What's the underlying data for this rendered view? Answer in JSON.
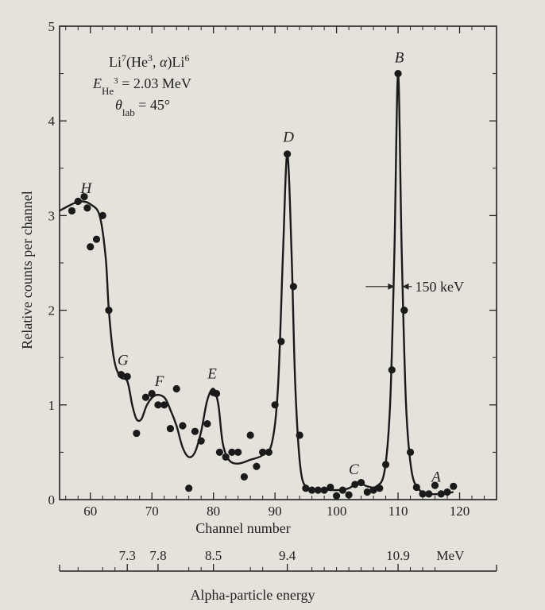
{
  "chart_data": {
    "type": "scatter",
    "reaction": "Li7(He3, α)Li6",
    "beam_energy_line": "E_He3 = 2.03 MeV",
    "angle_line": "θ_lab = 45°",
    "xlabel": "Channel number",
    "ylabel": "Relative counts per channel",
    "secondary_xlabel": "Alpha-particle energy",
    "xlim": [
      55,
      126
    ],
    "ylim": [
      0,
      5
    ],
    "x_ticks": [
      60,
      70,
      80,
      90,
      100,
      110,
      120
    ],
    "y_ticks": [
      0,
      1,
      2,
      3,
      4,
      5
    ],
    "energy_ticks": [
      {
        "channel": 66,
        "label": "7.3"
      },
      {
        "channel": 71,
        "label": "7.8"
      },
      {
        "channel": 80,
        "label": "8.5"
      },
      {
        "channel": 92,
        "label": "9.4"
      },
      {
        "channel": 110,
        "label": "10.9"
      },
      {
        "channel": 118.5,
        "label": "MeV"
      }
    ],
    "energy_minor_ticks": [
      58,
      62,
      64,
      76,
      78,
      86,
      88,
      96,
      98,
      100,
      102,
      104,
      106,
      108,
      112,
      114,
      116
    ],
    "points": [
      [
        57,
        3.05
      ],
      [
        58,
        3.15
      ],
      [
        59,
        3.2
      ],
      [
        59.5,
        3.08
      ],
      [
        60,
        2.67
      ],
      [
        61,
        2.75
      ],
      [
        62,
        3.0
      ],
      [
        63,
        2.0
      ],
      [
        65,
        1.32
      ],
      [
        66,
        1.3
      ],
      [
        67.5,
        0.7
      ],
      [
        69,
        1.08
      ],
      [
        70,
        1.12
      ],
      [
        71,
        1.0
      ],
      [
        72,
        1.0
      ],
      [
        73,
        0.75
      ],
      [
        74,
        1.17
      ],
      [
        75,
        0.78
      ],
      [
        76,
        0.12
      ],
      [
        77,
        0.72
      ],
      [
        78,
        0.62
      ],
      [
        79,
        0.8
      ],
      [
        80,
        1.13
      ],
      [
        80.5,
        1.12
      ],
      [
        81,
        0.5
      ],
      [
        82,
        0.45
      ],
      [
        83,
        0.5
      ],
      [
        84,
        0.5
      ],
      [
        85,
        0.24
      ],
      [
        86,
        0.68
      ],
      [
        87,
        0.35
      ],
      [
        88,
        0.5
      ],
      [
        89,
        0.5
      ],
      [
        90,
        1.0
      ],
      [
        91,
        1.67
      ],
      [
        92,
        3.65
      ],
      [
        93,
        2.25
      ],
      [
        94,
        0.68
      ],
      [
        95,
        0.12
      ],
      [
        96,
        0.1
      ],
      [
        97,
        0.1
      ],
      [
        98,
        0.1
      ],
      [
        99,
        0.13
      ],
      [
        100,
        0.04
      ],
      [
        101,
        0.1
      ],
      [
        102,
        0.05
      ],
      [
        103,
        0.16
      ],
      [
        104,
        0.18
      ],
      [
        105,
        0.08
      ],
      [
        106,
        0.1
      ],
      [
        107,
        0.12
      ],
      [
        108,
        0.37
      ],
      [
        109,
        1.37
      ],
      [
        110,
        4.5
      ],
      [
        111,
        2.0
      ],
      [
        112,
        0.5
      ],
      [
        113,
        0.13
      ],
      [
        114,
        0.06
      ],
      [
        115,
        0.06
      ],
      [
        116,
        0.15
      ],
      [
        117,
        0.06
      ],
      [
        118,
        0.08
      ],
      [
        119,
        0.14
      ]
    ],
    "curve": [
      [
        55,
        3.05
      ],
      [
        57,
        3.12
      ],
      [
        58.5,
        3.15
      ],
      [
        60,
        3.12
      ],
      [
        61.5,
        3.0
      ],
      [
        62.5,
        2.55
      ],
      [
        63,
        2.0
      ],
      [
        63.8,
        1.5
      ],
      [
        64.8,
        1.3
      ],
      [
        66,
        1.25
      ],
      [
        66.8,
        1.0
      ],
      [
        67.5,
        0.85
      ],
      [
        68.3,
        0.85
      ],
      [
        69.2,
        1.0
      ],
      [
        70.5,
        1.1
      ],
      [
        72,
        1.08
      ],
      [
        73,
        0.95
      ],
      [
        74,
        0.78
      ],
      [
        75,
        0.55
      ],
      [
        76,
        0.45
      ],
      [
        77,
        0.5
      ],
      [
        78,
        0.72
      ],
      [
        79,
        1.05
      ],
      [
        80,
        1.17
      ],
      [
        80.8,
        1.0
      ],
      [
        81.5,
        0.6
      ],
      [
        82.5,
        0.42
      ],
      [
        84,
        0.38
      ],
      [
        86,
        0.42
      ],
      [
        88,
        0.47
      ],
      [
        89.5,
        0.6
      ],
      [
        90.5,
        1.2
      ],
      [
        91.3,
        2.6
      ],
      [
        92,
        3.65
      ],
      [
        92.7,
        2.6
      ],
      [
        93.3,
        1.2
      ],
      [
        94.2,
        0.3
      ],
      [
        95.5,
        0.12
      ],
      [
        97,
        0.11
      ],
      [
        100,
        0.1
      ],
      [
        102,
        0.12
      ],
      [
        103.5,
        0.18
      ],
      [
        105,
        0.14
      ],
      [
        106.5,
        0.14
      ],
      [
        107.8,
        0.3
      ],
      [
        108.7,
        1.0
      ],
      [
        109.4,
        2.6
      ],
      [
        110,
        4.5
      ],
      [
        110.6,
        2.6
      ],
      [
        111.3,
        1.0
      ],
      [
        112.2,
        0.3
      ],
      [
        113.5,
        0.1
      ],
      [
        115,
        0.06
      ],
      [
        117,
        0.06
      ],
      [
        119,
        0.08
      ]
    ],
    "peaks": [
      {
        "label": "H",
        "x": 59.3,
        "y": 3.24
      },
      {
        "label": "G",
        "x": 65.3,
        "y": 1.42
      },
      {
        "label": "F",
        "x": 71.2,
        "y": 1.2
      },
      {
        "label": "E",
        "x": 79.8,
        "y": 1.28
      },
      {
        "label": "D",
        "x": 92.2,
        "y": 3.78
      },
      {
        "label": "C",
        "x": 102.8,
        "y": 0.27
      },
      {
        "label": "B",
        "x": 110.2,
        "y": 4.62
      },
      {
        "label": "A",
        "x": 116.2,
        "y": 0.19
      }
    ],
    "width_annotation": {
      "label": "150 keV",
      "y": 2.25,
      "left_x": 109.4,
      "right_x": 110.7
    }
  }
}
